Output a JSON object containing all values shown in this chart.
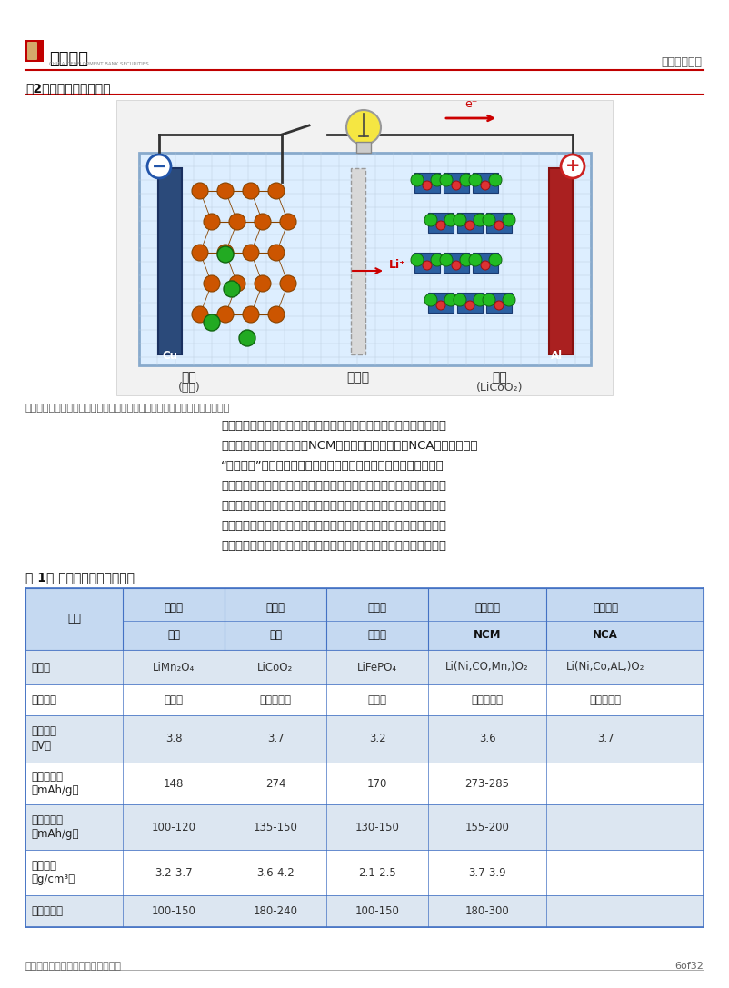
{
  "page_bg": "#ffffff",
  "header_logo_text": "国开证券",
  "header_right_text": "行业策略报告",
  "header_line_color": "#c00000",
  "fig2_title": "图2：锂电池充放电过程",
  "source_text": "资料来源：《锂离子电池过往与未来》（索塞斯等），国开证券研究与发展部",
  "body_lines": [
    "根据正极材料的不同，锂电池可分为锶酸锂电池、魈酸锂电池、磷酸铁",
    "锂电池、镕魈锶酸锂电池（NCM）和镕魈铝酸锂电池（NCA）（两者合称",
    "“三元电池”）。三元电池和磷酸铁锂电池是当前锂电池的两大主流，",
    "两者在性能方面存在不同，各有所长，适合应用在不同场景。磷酸铁锂",
    "电池在循环寿命、高温性能和安全性方面具备优势，适合应用于高性价",
    "比的新能源汽车和储能领域，而三元电池在能量密度、低温性能和电化",
    "学性能方面具备优势，适合应用于高端长续航新能源汽车和储能领域。"
  ],
  "table_title": "表 1： 各类型锂电池性能对比",
  "col_headers_row1": [
    "",
    "锶酸锂",
    "魈酸锂",
    "磷酸铁",
    "三元电池",
    "三元电池"
  ],
  "col_headers_row2": [
    "项目",
    "电池",
    "电池",
    "锂电池",
    "NCM",
    "NCA"
  ],
  "table_rows": [
    [
      "化学式",
      "LiMn₂O₄",
      "LiCoO₂",
      "LiFePO₄",
      "Li(Ni,CO,Mn,)O₂",
      "Li(Ni,Co,AL,)O₂"
    ],
    [
      "结构类型",
      "尖晶石",
      "层状氧化物",
      "橄榄石",
      "层状氧化物",
      "层状氧化物"
    ],
    [
      "电压平台\n（V）",
      "3.8",
      "3.7",
      "3.2",
      "3.6",
      "3.7"
    ],
    [
      "理论比容量\n（mAh/g）",
      "148",
      "274",
      "170",
      "273-285",
      ""
    ],
    [
      "实际比容量\n（mAh/g）",
      "100-120",
      "135-150",
      "130-150",
      "155-200",
      ""
    ],
    [
      "压实密度\n（g/cm³）",
      "3.2-3.7",
      "3.6-4.2",
      "2.1-2.5",
      "3.7-3.9",
      ""
    ],
    [
      "平均能量密",
      "100-150",
      "180-240",
      "100-150",
      "180-300",
      ""
    ]
  ],
  "row_bg_colors": [
    "#dce6f1",
    "#ffffff",
    "#dce6f1",
    "#ffffff",
    "#dce6f1",
    "#ffffff",
    "#dce6f1"
  ],
  "table_border_color": "#4472c4",
  "footer_text": "请务必阅读正文之后的免责条款部分",
  "footer_page": "6of32"
}
